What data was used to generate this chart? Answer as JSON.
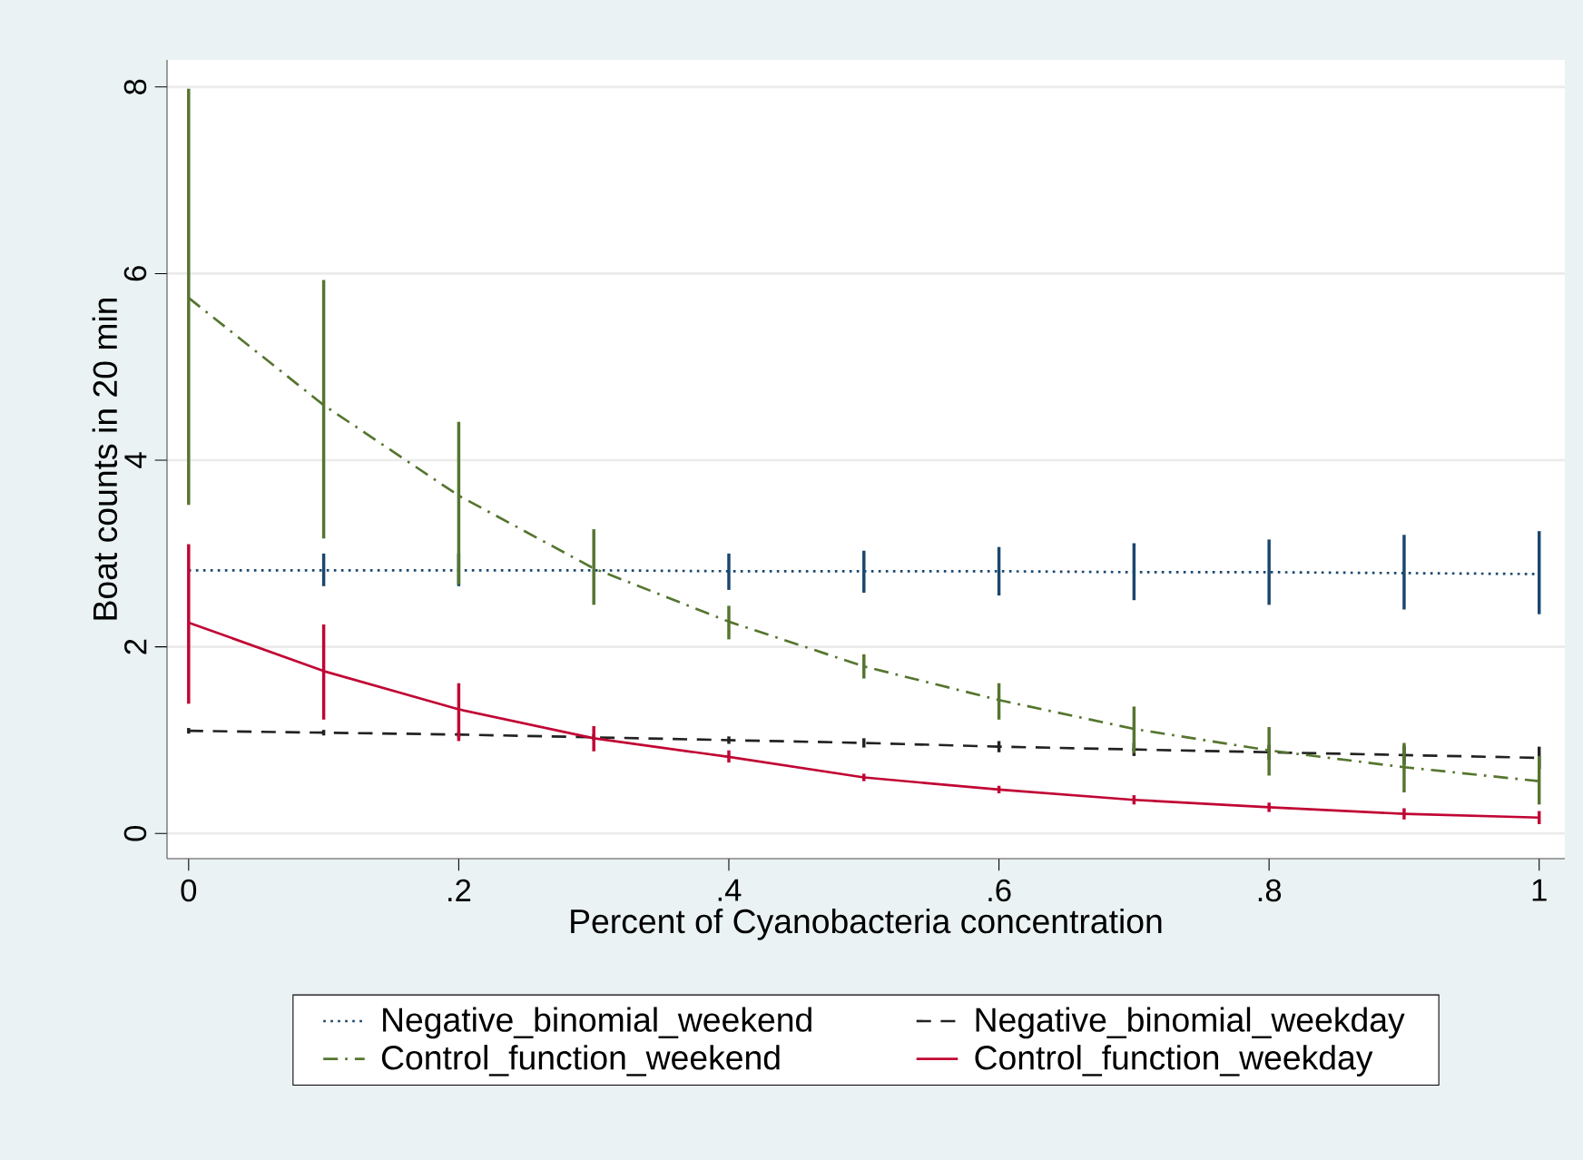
{
  "chart_data": {
    "type": "line",
    "xlabel": "Percent of Cyanobacteria concentration",
    "ylabel": "Boat counts in 20 min",
    "x": [
      0,
      0.1,
      0.2,
      0.3,
      0.4,
      0.5,
      0.6,
      0.7,
      0.8,
      0.9,
      1
    ],
    "xlim": [
      -0.016,
      1.019
    ],
    "ylim": [
      -0.27,
      8.29
    ],
    "xticks": [
      0,
      {
        "value": 0.2,
        "label": ".2"
      },
      {
        "value": 0.4,
        "label": ".4"
      },
      {
        "value": 0.6,
        "label": ".6"
      },
      {
        "value": 0.8,
        "label": ".8"
      },
      1
    ],
    "yticks": [
      0,
      2,
      4,
      6,
      8
    ],
    "grid": "y",
    "legend": "bottom",
    "marker": "none",
    "series": [
      {
        "name": "Negative_binomial_weekend",
        "color": "#1a476f",
        "line_style": "dotted",
        "values": [
          2.82,
          2.82,
          2.82,
          2.82,
          2.81,
          2.81,
          2.81,
          2.8,
          2.8,
          2.79,
          2.78
        ],
        "errors": [
          null,
          [
            2.65,
            3.0
          ],
          [
            2.65,
            3.0
          ],
          null,
          [
            2.61,
            3.0
          ],
          [
            2.58,
            3.03
          ],
          [
            2.55,
            3.07
          ],
          [
            2.5,
            3.11
          ],
          [
            2.45,
            3.15
          ],
          [
            2.4,
            3.2
          ],
          [
            2.35,
            3.24
          ]
        ]
      },
      {
        "name": "Negative_binomial_weekday",
        "color": "#222222",
        "line_style": "dashed",
        "values": [
          1.1,
          1.08,
          1.06,
          1.03,
          1.0,
          0.97,
          0.93,
          0.9,
          0.87,
          0.84,
          0.81
        ],
        "errors": [
          0.03,
          0.03,
          0.03,
          0.03,
          0.04,
          0.05,
          0.06,
          0.07,
          0.08,
          0.1,
          0.12
        ]
      },
      {
        "name": "Control_function_weekend",
        "color": "#55752f",
        "line_style": "dashdot",
        "values": [
          5.74,
          4.59,
          3.62,
          2.84,
          2.27,
          1.79,
          1.43,
          1.12,
          0.89,
          0.71,
          0.56
        ],
        "errors": [
          [
            3.52,
            7.98
          ],
          [
            3.16,
            5.93
          ],
          [
            2.67,
            4.41
          ],
          [
            2.45,
            3.26
          ],
          [
            2.08,
            2.44
          ],
          [
            1.66,
            1.92
          ],
          [
            1.22,
            1.61
          ],
          [
            0.86,
            1.36
          ],
          [
            0.62,
            1.14
          ],
          [
            0.44,
            0.97
          ],
          [
            0.31,
            0.83
          ]
        ]
      },
      {
        "name": "Control_function_weekday",
        "color": "#c10534",
        "line_style": "solid",
        "values": [
          2.26,
          1.74,
          1.33,
          1.02,
          0.82,
          0.6,
          0.47,
          0.36,
          0.28,
          0.21,
          0.17
        ],
        "errors": [
          [
            1.39,
            3.1
          ],
          [
            1.22,
            2.24
          ],
          [
            0.99,
            1.61
          ],
          [
            0.88,
            1.15
          ],
          [
            0.76,
            0.89
          ],
          0.04,
          0.04,
          0.05,
          0.05,
          0.06,
          0.07
        ]
      }
    ]
  }
}
